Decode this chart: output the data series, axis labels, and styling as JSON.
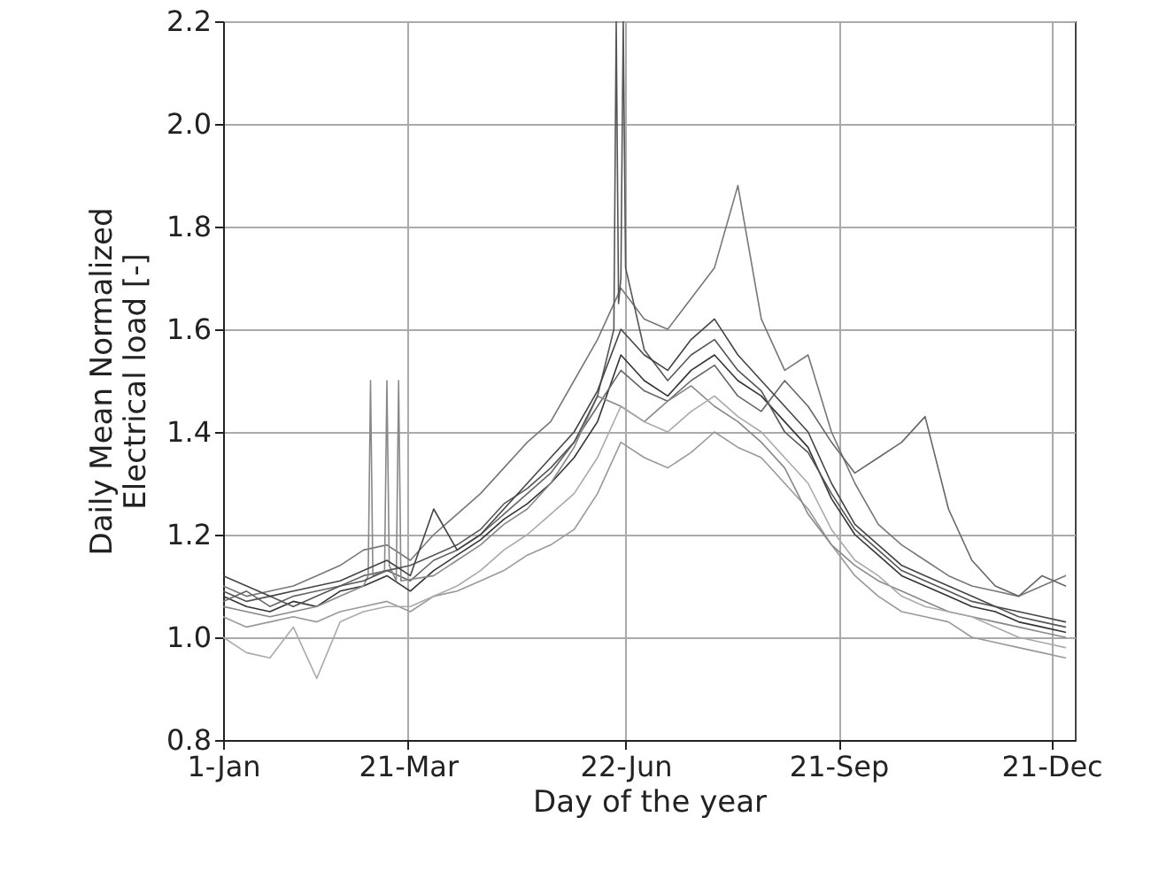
{
  "chart_data": {
    "type": "line",
    "xlabel": "Day of the year",
    "ylabel": "Daily Mean Normalized\nElectrical load [-]",
    "x": [
      "--01-01",
      "--01-11",
      "--01-21",
      "--01-31",
      "--02-10",
      "--02-20",
      "--03-02",
      "--03-12",
      "--03-22",
      "--04-01",
      "--04-11",
      "--04-21",
      "--05-01",
      "--05-11",
      "--05-21",
      "--05-31",
      "--06-10",
      "--06-20",
      "--06-30",
      "--07-10",
      "--07-20",
      "--07-30",
      "--08-09",
      "--08-19",
      "--08-29",
      "--09-08",
      "--09-18",
      "--09-28",
      "--10-08",
      "--10-18",
      "--10-28",
      "--11-07",
      "--11-17",
      "--11-27",
      "--12-07",
      "--12-17",
      "--12-27"
    ],
    "xlim": [
      "--01-01",
      "--12-31"
    ],
    "xticks": [
      {
        "value": "--01-01",
        "label": "1-Jan"
      },
      {
        "value": "--03-21",
        "label": "21-Mar"
      },
      {
        "value": "--06-22",
        "label": "22-Jun"
      },
      {
        "value": "--09-21",
        "label": "21-Sep"
      },
      {
        "value": "--12-21",
        "label": "21-Dec"
      }
    ],
    "ylim": [
      0.8,
      2.2
    ],
    "yticks": [
      {
        "value": 0.8,
        "label": "0.8"
      },
      {
        "value": 1,
        "label": "1.0"
      },
      {
        "value": 1.2,
        "label": "1.2"
      },
      {
        "value": 1.4,
        "label": "1.4"
      },
      {
        "value": 1.6,
        "label": "1.6"
      },
      {
        "value": 1.8,
        "label": "1.8"
      },
      {
        "value": 2,
        "label": "2.0"
      },
      {
        "value": 2.2,
        "label": "2.2"
      }
    ],
    "grid": true,
    "line_style": "solid",
    "series": [
      {
        "color": "#333333",
        "values": [
          1.08,
          1.06,
          1.05,
          1.07,
          1.06,
          1.09,
          1.1,
          1.12,
          1.09,
          1.13,
          1.16,
          1.19,
          1.23,
          1.26,
          1.3,
          1.35,
          1.42,
          1.55,
          1.5,
          1.47,
          1.52,
          1.55,
          1.5,
          1.47,
          1.42,
          1.37,
          1.27,
          1.2,
          1.16,
          1.12,
          1.1,
          1.08,
          1.06,
          1.05,
          1.03,
          1.02,
          1.01
        ]
      },
      {
        "color": "#777777",
        "values": [
          1.1,
          1.08,
          1.09,
          1.1,
          1.12,
          1.14,
          1.17,
          1.18,
          1.15,
          1.2,
          1.24,
          1.28,
          1.33,
          1.38,
          1.42,
          1.5,
          1.58,
          1.68,
          1.62,
          1.6,
          1.66,
          1.72,
          1.88,
          1.62,
          1.52,
          1.55,
          1.4,
          1.3,
          1.22,
          1.18,
          1.15,
          1.12,
          1.1,
          1.09,
          1.08,
          1.1,
          1.12
        ]
      },
      {
        "color": "#999999",
        "values": [
          1.04,
          1.02,
          1.03,
          1.04,
          1.03,
          1.05,
          1.06,
          1.07,
          1.05,
          1.08,
          1.09,
          1.11,
          1.13,
          1.16,
          1.18,
          1.21,
          1.28,
          1.38,
          1.35,
          1.33,
          1.36,
          1.4,
          1.37,
          1.35,
          1.3,
          1.25,
          1.18,
          1.12,
          1.08,
          1.05,
          1.04,
          1.03,
          1.0,
          0.99,
          0.98,
          0.97,
          0.96
        ]
      },
      {
        "color": "#666666",
        "values": [
          1.07,
          1.09,
          1.06,
          1.08,
          1.09,
          1.1,
          1.12,
          1.13,
          1.11,
          1.15,
          1.17,
          1.2,
          1.24,
          1.28,
          1.32,
          1.38,
          1.45,
          1.52,
          1.48,
          1.46,
          1.5,
          1.53,
          1.47,
          1.44,
          1.5,
          1.45,
          1.38,
          1.32,
          1.35,
          1.38,
          1.43,
          1.25,
          1.15,
          1.1,
          1.08,
          1.12,
          1.1
        ]
      },
      {
        "color": "#888888",
        "x": [
          "--01-01",
          "--01-11",
          "--01-21",
          "--01-31",
          "--02-10",
          "--02-20",
          "--03-02",
          "--03-04",
          "--03-05",
          "--03-06",
          "--03-11",
          "--03-12",
          "--03-13",
          "--03-16",
          "--03-17",
          "--03-18",
          "--04-01",
          "--04-11",
          "--04-21",
          "--05-01",
          "--05-11",
          "--05-21",
          "--05-31",
          "--06-10",
          "--06-20",
          "--06-30",
          "--07-10",
          "--07-20",
          "--07-30",
          "--08-09",
          "--08-19",
          "--08-29",
          "--09-08",
          "--09-18",
          "--09-28",
          "--10-08",
          "--10-18",
          "--10-28",
          "--11-07",
          "--11-17",
          "--11-27",
          "--12-07",
          "--12-17",
          "--12-27"
        ],
        "values": [
          1.06,
          1.05,
          1.04,
          1.05,
          1.06,
          1.08,
          1.1,
          1.12,
          1.5,
          1.12,
          1.13,
          1.5,
          1.14,
          1.11,
          1.5,
          1.11,
          1.12,
          1.15,
          1.18,
          1.22,
          1.25,
          1.3,
          1.37,
          1.47,
          1.45,
          1.42,
          1.46,
          1.49,
          1.45,
          1.42,
          1.38,
          1.33,
          1.24,
          1.18,
          1.14,
          1.11,
          1.09,
          1.07,
          1.05,
          1.04,
          1.03,
          1.02,
          1.01,
          1.0
        ]
      },
      {
        "color": "#555555",
        "x": [
          "--01-01",
          "--01-11",
          "--01-21",
          "--01-31",
          "--02-10",
          "--02-20",
          "--03-02",
          "--03-12",
          "--03-22",
          "--04-01",
          "--04-11",
          "--04-21",
          "--05-01",
          "--05-11",
          "--05-21",
          "--05-31",
          "--06-10",
          "--06-17",
          "--06-18",
          "--06-19",
          "--06-20",
          "--06-21",
          "--06-22",
          "--06-30",
          "--07-10",
          "--07-20",
          "--07-30",
          "--08-09",
          "--08-19",
          "--08-29",
          "--09-08",
          "--09-18",
          "--09-28",
          "--10-08",
          "--10-18",
          "--10-28",
          "--11-07",
          "--11-17",
          "--11-27",
          "--12-07",
          "--12-17",
          "--12-27"
        ],
        "values": [
          1.09,
          1.07,
          1.08,
          1.06,
          1.08,
          1.1,
          1.11,
          1.13,
          1.14,
          1.16,
          1.18,
          1.21,
          1.26,
          1.29,
          1.33,
          1.38,
          1.47,
          1.6,
          2.2,
          1.65,
          1.7,
          2.2,
          1.72,
          1.56,
          1.5,
          1.55,
          1.58,
          1.52,
          1.48,
          1.4,
          1.36,
          1.28,
          1.21,
          1.17,
          1.13,
          1.11,
          1.09,
          1.07,
          1.06,
          1.04,
          1.03,
          1.02
        ]
      },
      {
        "color": "#aaaaaa",
        "values": [
          1.0,
          0.97,
          0.96,
          1.02,
          0.92,
          1.03,
          1.05,
          1.06,
          1.06,
          1.08,
          1.1,
          1.13,
          1.17,
          1.2,
          1.24,
          1.28,
          1.35,
          1.45,
          1.42,
          1.4,
          1.44,
          1.47,
          1.43,
          1.4,
          1.35,
          1.3,
          1.21,
          1.15,
          1.12,
          1.08,
          1.06,
          1.05,
          1.04,
          1.02,
          1.0,
          0.99,
          0.98
        ]
      },
      {
        "color": "#444444",
        "values": [
          1.12,
          1.1,
          1.08,
          1.09,
          1.1,
          1.11,
          1.13,
          1.15,
          1.12,
          1.25,
          1.17,
          1.2,
          1.25,
          1.3,
          1.35,
          1.4,
          1.48,
          1.6,
          1.55,
          1.52,
          1.58,
          1.62,
          1.55,
          1.5,
          1.45,
          1.4,
          1.3,
          1.22,
          1.18,
          1.14,
          1.12,
          1.1,
          1.08,
          1.06,
          1.05,
          1.04,
          1.03
        ]
      }
    ]
  }
}
